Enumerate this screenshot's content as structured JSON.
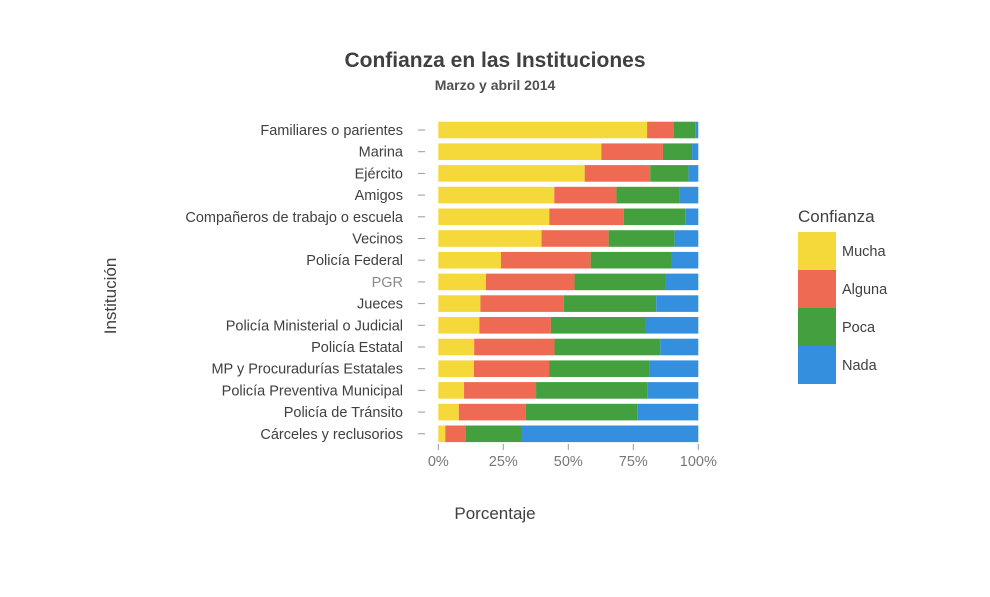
{
  "chart_data": {
    "type": "bar",
    "orientation": "horizontal",
    "stacked": true,
    "title": "Confianza en las Instituciones",
    "subtitle": "Marzo y abril 2014",
    "xlabel": "Porcentaje",
    "ylabel": "Institución",
    "xlim": [
      0,
      100
    ],
    "xticks": [
      "0%",
      "25%",
      "50%",
      "75%",
      "100%"
    ],
    "legend": {
      "title": "Confianza",
      "placement": "right"
    },
    "categories": [
      "Familiares o parientes",
      "Marina",
      "Ejército",
      "Amigos",
      "Compañeros de trabajo o escuela",
      "Vecinos",
      "Policía Federal",
      "PGR",
      "Jueces",
      "Policía Ministerial o Judicial",
      "Policía Estatal",
      "MP y Procuradurías Estatales",
      "Policía Preventiva Municipal",
      "Policía de Tránsito",
      "Cárceles y reclusorios"
    ],
    "highlighted_category": "PGR",
    "series": [
      {
        "name": "Mucha",
        "color": "#F5D93A",
        "values": [
          80.3,
          62.7,
          56.3,
          44.6,
          42.7,
          39.7,
          24.1,
          18.3,
          16.2,
          15.8,
          13.8,
          13.7,
          9.9,
          7.9,
          2.7
        ]
      },
      {
        "name": "Alguna",
        "color": "#EE6A52",
        "values": [
          10.2,
          23.7,
          25.2,
          23.9,
          28.7,
          25.8,
          34.5,
          34.1,
          32.1,
          27.5,
          30.9,
          28.9,
          27.7,
          25.8,
          7.8
        ]
      },
      {
        "name": "Poca",
        "color": "#44A03F",
        "values": [
          8.3,
          11.2,
          14.7,
          24.1,
          23.6,
          25.4,
          30.9,
          34.8,
          35.5,
          36.4,
          40.7,
          38.6,
          42.8,
          43.0,
          21.7
        ]
      },
      {
        "name": "Nada",
        "color": "#3490DE",
        "values": [
          1.2,
          2.4,
          3.8,
          7.4,
          5.0,
          9.1,
          10.5,
          12.8,
          16.2,
          20.3,
          14.6,
          18.8,
          19.6,
          23.3,
          67.8
        ]
      }
    ]
  }
}
